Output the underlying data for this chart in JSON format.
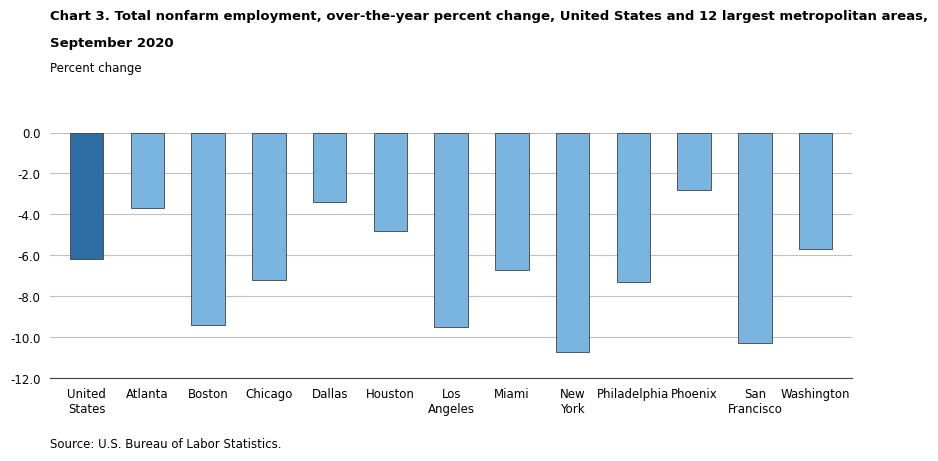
{
  "categories": [
    "United\nStates",
    "Atlanta",
    "Boston",
    "Chicago",
    "Dallas",
    "Houston",
    "Los\nAngeles",
    "Miami",
    "New\nYork",
    "Philadelphia",
    "Phoenix",
    "San\nFrancisco",
    "Washington"
  ],
  "values": [
    -6.2,
    -3.7,
    -9.4,
    -7.2,
    -3.4,
    -4.8,
    -9.5,
    -6.7,
    -10.7,
    -7.3,
    -2.8,
    -10.3,
    -5.7
  ],
  "bar_colors": [
    "#2e6da4",
    "#7ab4e0",
    "#7ab4e0",
    "#7ab4e0",
    "#7ab4e0",
    "#7ab4e0",
    "#7ab4e0",
    "#7ab4e0",
    "#7ab4e0",
    "#7ab4e0",
    "#7ab4e0",
    "#7ab4e0",
    "#7ab4e0"
  ],
  "title_line1": "Chart 3. Total nonfarm employment, over-the-year percent change, United States and 12 largest metropolitan areas,",
  "title_line2": "September 2020",
  "axis_label": "Percent change",
  "ylim": [
    -12.0,
    0.0
  ],
  "yticks": [
    0.0,
    -2.0,
    -4.0,
    -6.0,
    -8.0,
    -10.0,
    -12.0
  ],
  "source": "Source: U.S. Bureau of Labor Statistics.",
  "title_fontsize": 9.5,
  "tick_fontsize": 8.5,
  "axis_label_fontsize": 8.5,
  "source_fontsize": 8.5,
  "background_color": "#ffffff",
  "grid_color": "#c0c0c0",
  "bar_edge_color": "#404040",
  "bar_width": 0.55
}
